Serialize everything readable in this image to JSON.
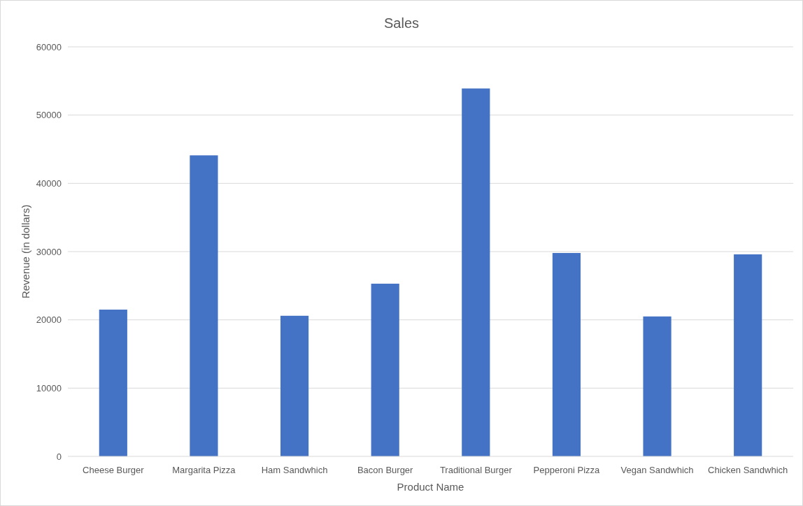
{
  "chart_data": {
    "type": "bar",
    "title": "Sales",
    "xlabel": "Product Name",
    "ylabel": "Revenue (in dollars)",
    "categories": [
      "Cheese Burger",
      "Margarita Pizza",
      "Ham Sandwhich",
      "Bacon Burger",
      "Traditional Burger",
      "Pepperoni Pizza",
      "Vegan Sandwhich",
      "Chicken Sandwhich"
    ],
    "values": [
      21500,
      44100,
      20600,
      25300,
      53900,
      29800,
      20500,
      29600
    ],
    "color": "#4472c4",
    "ylim": [
      0,
      60000
    ],
    "yticks": [
      0,
      10000,
      20000,
      30000,
      40000,
      50000,
      60000
    ],
    "grid": true
  }
}
